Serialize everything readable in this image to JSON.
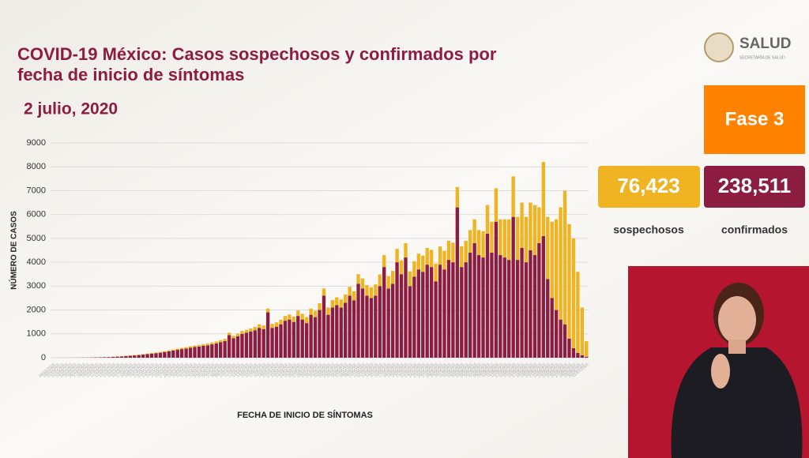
{
  "header": {
    "title_line1": "COVID-19 México: Casos sospechosos y confirmados por",
    "title_line2": "fecha de inicio de síntomas",
    "date": "2 julio, 2020",
    "logo": "SALUD",
    "logo_sub": "SECRETARÍA DE SALUD"
  },
  "stats": {
    "phase": "Fase 3",
    "suspected_value": "76,423",
    "suspected_label": "sospechosos",
    "confirmed_value": "238,511",
    "confirmed_label": "confirmados"
  },
  "chart_data": {
    "type": "stacked_bar",
    "ylabel": "NÚMERO DE CASOS",
    "xlabel": "FECHA DE INICIO DE SÍNTOMAS",
    "ylim": [
      0,
      9000
    ],
    "yticks": [
      0,
      1000,
      2000,
      3000,
      4000,
      5000,
      6000,
      7000,
      8000,
      9000
    ],
    "grid": true,
    "categories": [
      "28/02/2020",
      "29/02/2020",
      "01/03/2020",
      "02/03/2020",
      "03/03/2020",
      "04/03/2020",
      "05/03/2020",
      "06/03/2020",
      "07/03/2020",
      "08/03/2020",
      "09/03/2020",
      "10/03/2020",
      "11/03/2020",
      "12/03/2020",
      "13/03/2020",
      "14/03/2020",
      "15/03/2020",
      "16/03/2020",
      "17/03/2020",
      "18/03/2020",
      "19/03/2020",
      "20/03/2020",
      "21/03/2020",
      "22/03/2020",
      "23/03/2020",
      "24/03/2020",
      "25/03/2020",
      "26/03/2020",
      "27/03/2020",
      "28/03/2020",
      "29/03/2020",
      "30/03/2020",
      "31/03/2020",
      "01/04/2020",
      "02/04/2020",
      "03/04/2020",
      "04/04/2020",
      "05/04/2020",
      "06/04/2020",
      "07/04/2020",
      "08/04/2020",
      "09/04/2020",
      "10/04/2020",
      "11/04/2020",
      "12/04/2020",
      "13/04/2020",
      "14/04/2020",
      "15/04/2020",
      "16/04/2020",
      "17/04/2020",
      "18/04/2020",
      "19/04/2020",
      "20/04/2020",
      "21/04/2020",
      "22/04/2020",
      "23/04/2020",
      "24/04/2020",
      "25/04/2020",
      "26/04/2020",
      "27/04/2020",
      "28/04/2020",
      "29/04/2020",
      "30/04/2020",
      "01/05/2020",
      "02/05/2020",
      "03/05/2020",
      "04/05/2020",
      "05/05/2020",
      "06/05/2020",
      "07/05/2020",
      "08/05/2020",
      "09/05/2020",
      "10/05/2020",
      "11/05/2020",
      "12/05/2020",
      "13/05/2020",
      "14/05/2020",
      "15/05/2020",
      "16/05/2020",
      "17/05/2020",
      "18/05/2020",
      "19/05/2020",
      "20/05/2020",
      "21/05/2020",
      "22/05/2020",
      "23/05/2020",
      "24/05/2020",
      "25/05/2020",
      "26/05/2020",
      "27/05/2020",
      "28/05/2020",
      "29/05/2020",
      "30/05/2020",
      "31/05/2020",
      "01/06/2020",
      "02/06/2020",
      "03/06/2020",
      "04/06/2020",
      "05/06/2020",
      "06/06/2020",
      "07/06/2020",
      "08/06/2020",
      "09/06/2020",
      "10/06/2020",
      "11/06/2020",
      "12/06/2020",
      "13/06/2020",
      "14/06/2020",
      "15/06/2020",
      "16/06/2020",
      "17/06/2020",
      "18/06/2020",
      "19/06/2020",
      "20/06/2020",
      "21/06/2020",
      "22/06/2020",
      "23/06/2020",
      "24/06/2020",
      "25/06/2020",
      "26/06/2020",
      "27/06/2020",
      "28/06/2020",
      "29/06/2020",
      "30/06/2020",
      "01/07/2020"
    ],
    "series": [
      {
        "name": "confirmados",
        "color": "#8c1d40",
        "values": [
          1,
          1,
          2,
          2,
          3,
          4,
          5,
          8,
          10,
          12,
          15,
          18,
          22,
          28,
          35,
          45,
          55,
          70,
          80,
          95,
          110,
          130,
          150,
          170,
          190,
          210,
          240,
          270,
          300,
          330,
          360,
          380,
          420,
          450,
          470,
          500,
          520,
          560,
          600,
          650,
          700,
          950,
          820,
          900,
          1000,
          1050,
          1100,
          1150,
          1250,
          1200,
          1900,
          1250,
          1300,
          1400,
          1550,
          1600,
          1500,
          1750,
          1600,
          1450,
          1800,
          1700,
          2000,
          2600,
          1800,
          2100,
          2200,
          2100,
          2300,
          2600,
          2400,
          3100,
          2900,
          2600,
          2500,
          2600,
          3000,
          3800,
          2900,
          3100,
          4000,
          3500,
          4200,
          3000,
          3400,
          3700,
          3600,
          3900,
          3800,
          3200,
          3900,
          3700,
          4100,
          4000,
          6300,
          3800,
          4000,
          4400,
          4800,
          4300,
          4200,
          5200,
          4400,
          5700,
          4300,
          4200,
          4100,
          5900,
          4100,
          4600,
          4000,
          4500,
          4300,
          4800,
          5100,
          3300,
          2500,
          2000,
          1600,
          1400,
          800,
          400,
          200,
          100,
          40
        ]
      },
      {
        "name": "sospechosos",
        "color": "#f0b423",
        "values": [
          0,
          0,
          0,
          1,
          1,
          1,
          2,
          2,
          3,
          3,
          4,
          5,
          5,
          6,
          8,
          10,
          12,
          14,
          16,
          18,
          20,
          22,
          25,
          28,
          30,
          35,
          38,
          40,
          45,
          50,
          50,
          55,
          60,
          60,
          65,
          70,
          70,
          75,
          80,
          85,
          90,
          100,
          100,
          110,
          120,
          120,
          130,
          140,
          150,
          150,
          160,
          170,
          180,
          190,
          200,
          210,
          220,
          230,
          240,
          250,
          260,
          270,
          280,
          300,
          300,
          320,
          330,
          340,
          350,
          370,
          380,
          400,
          420,
          440,
          450,
          470,
          490,
          500,
          520,
          540,
          560,
          580,
          600,
          620,
          640,
          660,
          680,
          700,
          720,
          740,
          760,
          780,
          800,
          820,
          850,
          870,
          900,
          950,
          1000,
          1050,
          1100,
          1200,
          1300,
          1400,
          1500,
          1600,
          1700,
          1700,
          1800,
          1900,
          1900,
          2000,
          2100,
          1500,
          3100,
          2600,
          3200,
          3800,
          4700,
          5600,
          4800,
          4600,
          3400,
          2000,
          650
        ]
      }
    ]
  }
}
